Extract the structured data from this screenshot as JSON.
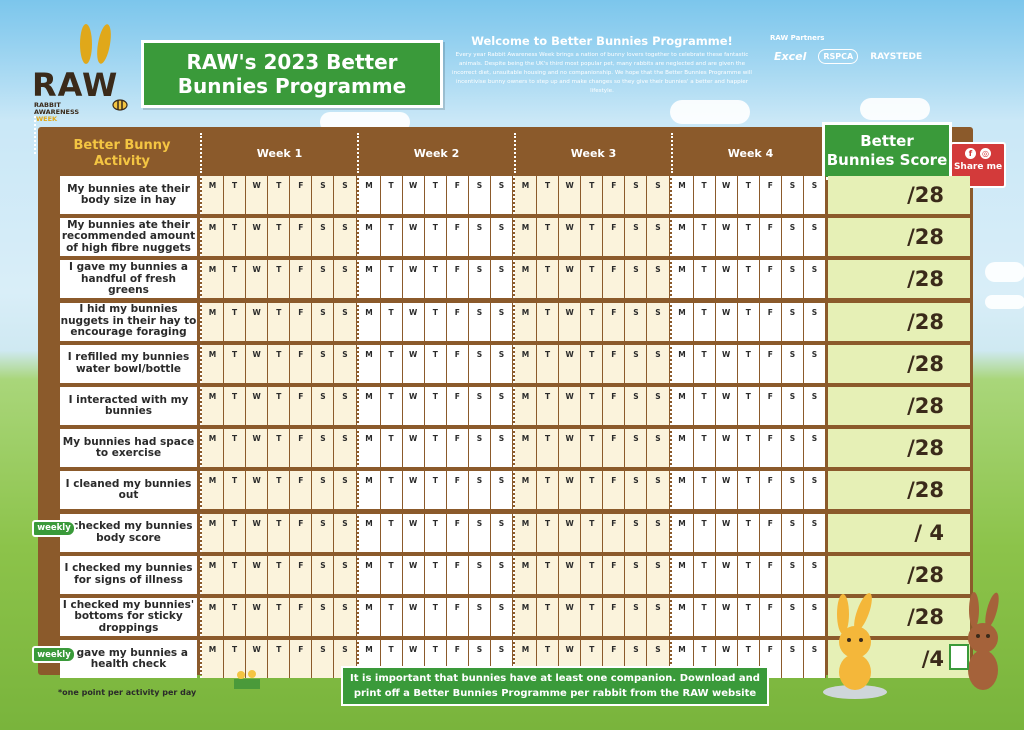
{
  "logo": {
    "brand": "RAW",
    "sub_line1": "RABBIT",
    "sub_line2": "AWARENESS",
    "sub_line3": "WEEK"
  },
  "title": "RAW's 2023 Better Bunnies Programme",
  "welcome": {
    "heading": "Welcome to Better Bunnies Programme!",
    "body": "Every year Rabbit Awareness Week brings a nation of bunny lovers together to celebrate these fantastic animals. Despite being the UK's third most popular pet, many rabbits are neglected and are given the incorrect diet, unsuitable housing and no companionship. We hope that the Better Bunnies Programme will incentivise bunny owners to step up and make changes so they give their bunnies' a better and happier lifestyle."
  },
  "partners": {
    "heading": "RAW Partners",
    "names": [
      "Excel",
      "RSPCA",
      "RAYSTEDE"
    ]
  },
  "table": {
    "activity_header": "Better Bunny Activity",
    "weeks": [
      "Week 1",
      "Week 2",
      "Week 3",
      "Week 4"
    ],
    "days": [
      "M",
      "T",
      "W",
      "T",
      "F",
      "S",
      "S"
    ],
    "score_header": "Better Bunnies Score",
    "rows": [
      {
        "activity": "My bunnies ate their body size in hay",
        "score": "/28",
        "weekly": ""
      },
      {
        "activity": "My bunnies ate their recommended amount of high fibre nuggets",
        "score": "/28",
        "weekly": ""
      },
      {
        "activity": "I gave my bunnies a handful of fresh greens",
        "score": "/28",
        "weekly": ""
      },
      {
        "activity": "I hid my bunnies nuggets in their hay to encourage foraging",
        "score": "/28",
        "weekly": ""
      },
      {
        "activity": "I refilled my bunnies water bowl/bottle",
        "score": "/28",
        "weekly": ""
      },
      {
        "activity": "I interacted with my bunnies",
        "score": "/28",
        "weekly": ""
      },
      {
        "activity": "My bunnies had space to exercise",
        "score": "/28",
        "weekly": ""
      },
      {
        "activity": "I cleaned my bunnies out",
        "score": "/28",
        "weekly": ""
      },
      {
        "activity": "I checked my bunnies body score",
        "score": "/ 4",
        "weekly": "weekly"
      },
      {
        "activity": "I checked my bunnies for signs of illness",
        "score": "/28",
        "weekly": ""
      },
      {
        "activity": "I checked my bunnies' bottoms for sticky droppings",
        "score": "/28",
        "weekly": ""
      },
      {
        "activity": "I gave my bunnies a health check",
        "score": "/4",
        "weekly": "weekly"
      }
    ]
  },
  "share": {
    "label": "Share me"
  },
  "companion_note": "It is important that bunnies have at least one companion. Download and print off a Better Bunnies Programme per rabbit from the RAW website",
  "footnote": "*one point per activity per day",
  "colors": {
    "board": "#8b5a2b",
    "green": "#3a9a3a",
    "score_bg": "#e6f0b6",
    "accent_yellow": "#f4c542"
  }
}
